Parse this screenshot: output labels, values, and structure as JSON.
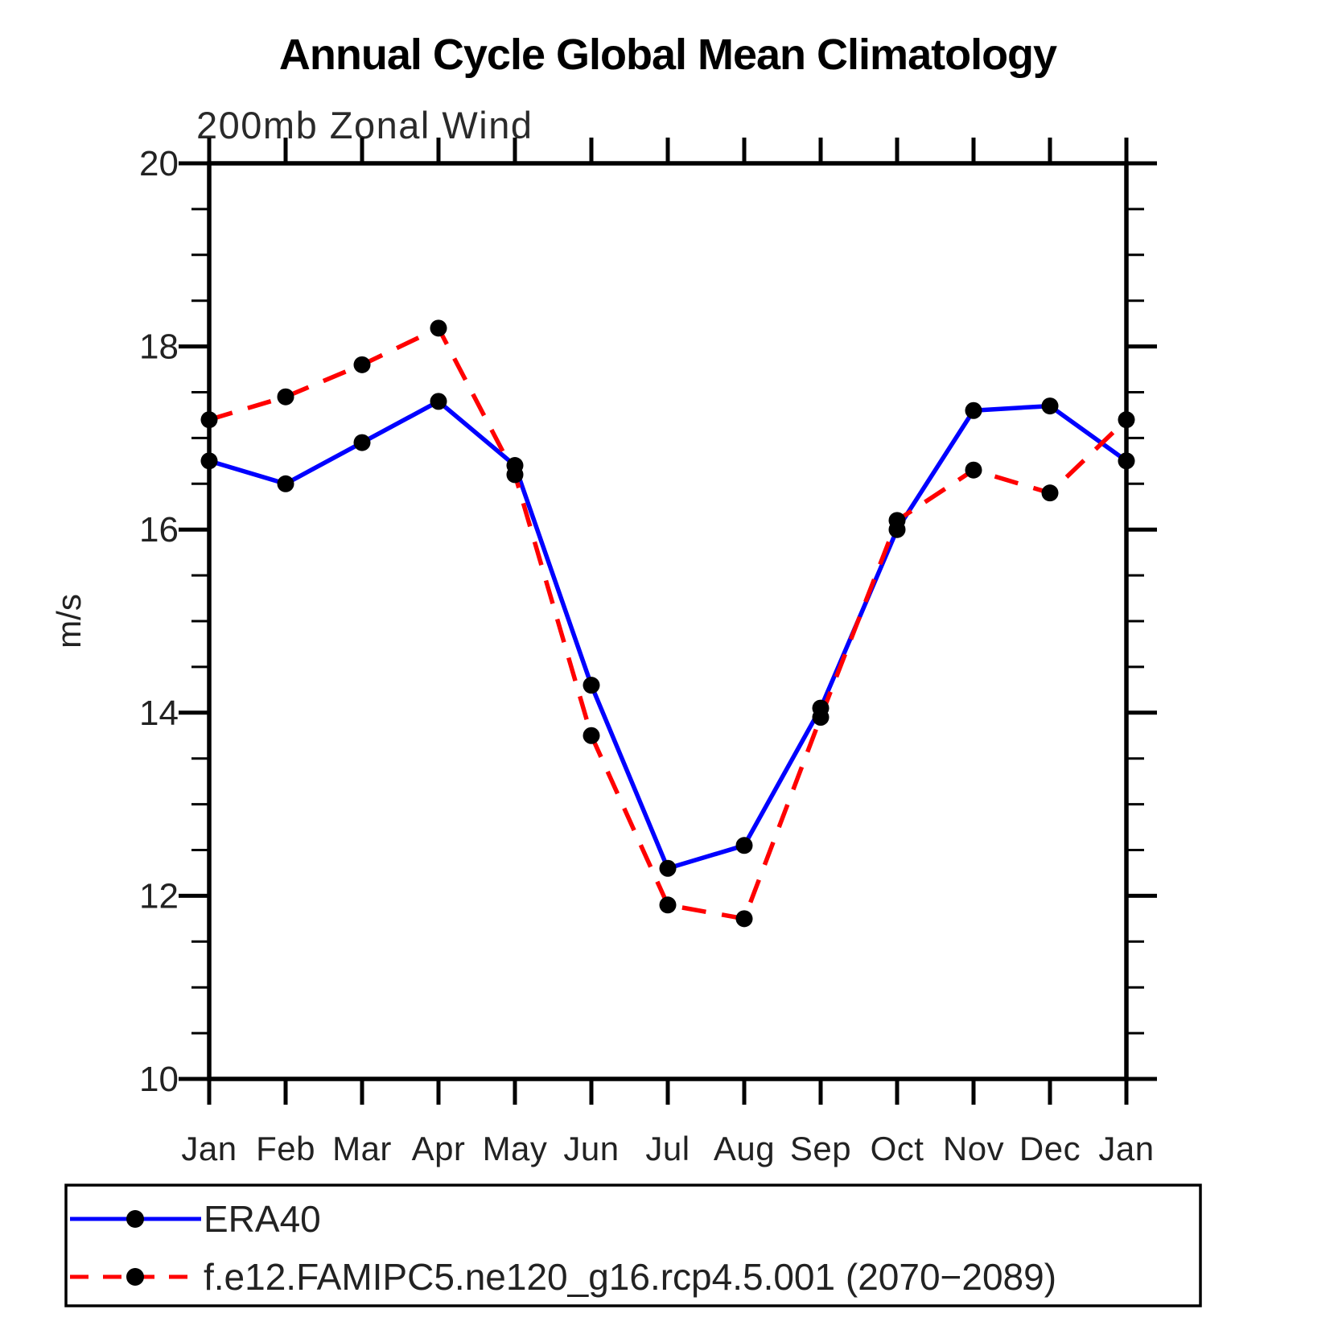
{
  "page": {
    "background": "#ffffff"
  },
  "chart_data": {
    "type": "line",
    "title": "Annual Cycle Global Mean Climatology",
    "subtitle": "200mb Zonal Wind",
    "xlabel": "",
    "ylabel": "m/s",
    "categories": [
      "Jan",
      "Feb",
      "Mar",
      "Apr",
      "May",
      "Jun",
      "Jul",
      "Aug",
      "Sep",
      "Oct",
      "Nov",
      "Dec",
      "Jan"
    ],
    "ylim": [
      10,
      20
    ],
    "y_major_ticks": [
      10,
      12,
      14,
      16,
      18,
      20
    ],
    "y_minor_step": 0.5,
    "grid": false,
    "legend_position": "bottom-left-box",
    "marker_color": "#000000",
    "series": [
      {
        "name": "ERA40",
        "color": "#0000ff",
        "style": "solid",
        "marker": "black-dot",
        "values": [
          16.75,
          16.5,
          16.95,
          17.4,
          16.7,
          14.3,
          12.3,
          12.55,
          14.05,
          16.0,
          17.3,
          17.35,
          16.75
        ]
      },
      {
        "name": "f.e12.FAMIPC5.ne120_g16.rcp4.5.001 (2070−2089)",
        "color": "#ff0000",
        "style": "dashed",
        "marker": "black-dot",
        "values": [
          17.2,
          17.45,
          17.8,
          18.2,
          16.6,
          13.75,
          11.9,
          11.75,
          13.95,
          16.1,
          16.65,
          16.4,
          17.2
        ]
      }
    ]
  },
  "legend": {
    "entries": [
      {
        "label": "ERA40"
      },
      {
        "label": "f.e12.FAMIPC5.ne120_g16.rcp4.5.001 (2070−2089)"
      }
    ]
  }
}
